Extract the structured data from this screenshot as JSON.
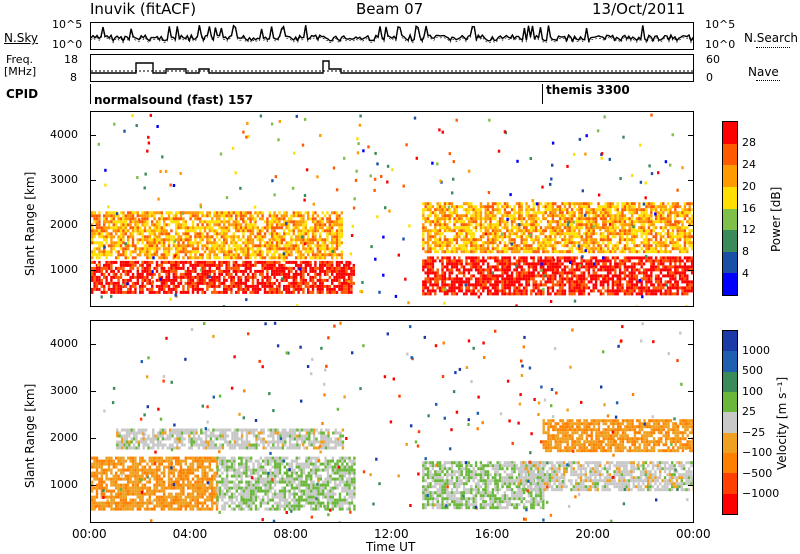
{
  "header": {
    "station": "Inuvik (fitACF)",
    "beam": "Beam 07",
    "date": "13/Oct/2011"
  },
  "left_labels": {
    "nsky": "N.Sky",
    "freq_top": "Freq.",
    "freq_unit": "[MHz]",
    "cpid": "CPID"
  },
  "right_labels": {
    "nsearch": "N.Search",
    "nave": "Nave"
  },
  "noise_axis": {
    "left_ticks": [
      "10^5",
      "10^0"
    ],
    "right_ticks": [
      "10^5",
      "10^0"
    ]
  },
  "freq_axis": {
    "left_ticks": [
      "18",
      "8"
    ],
    "right_ticks": [
      "60",
      "0"
    ]
  },
  "cpid_segments": [
    {
      "label": "normalsound (fast) 157"
    },
    {
      "label": "themis 3300"
    }
  ],
  "colors": {
    "power_scale": [
      "#0000ff",
      "#1a4fa8",
      "#3a8a5a",
      "#7fc04a",
      "#ffe000",
      "#ff9a00",
      "#ff5a00",
      "#ff0000"
    ],
    "velocity_scale": [
      "#1a3aa8",
      "#1e5fb0",
      "#3a8a5a",
      "#6ab83a",
      "#c8c8c8",
      "#f0a020",
      "#ff8000",
      "#ff4000",
      "#ff0000"
    ]
  },
  "chart_data": [
    {
      "type": "heatmap",
      "title": "",
      "xlabel": "",
      "ylabel": "Slant Range [km]",
      "ylim": [
        200,
        4500
      ],
      "yticks": [
        "1000",
        "2000",
        "3000",
        "4000"
      ],
      "colorbar": {
        "label": "Power [dB]",
        "ticks": [
          "4",
          "8",
          "12",
          "16",
          "20",
          "24",
          "28"
        ],
        "range": [
          0,
          30
        ]
      },
      "bands": [
        {
          "x0": 0.0,
          "x1": 10.5,
          "y0": 500,
          "y1": 1200,
          "level": 28
        },
        {
          "x0": 0.0,
          "x1": 10.0,
          "y0": 1300,
          "y1": 2300,
          "level": 20
        },
        {
          "x0": 13.2,
          "x1": 24.0,
          "y0": 500,
          "y1": 1300,
          "level": 28
        },
        {
          "x0": 13.2,
          "x1": 24.0,
          "y0": 1400,
          "y1": 2500,
          "level": 20
        }
      ]
    },
    {
      "type": "heatmap",
      "title": "",
      "xlabel": "Time UT",
      "ylabel": "Slant Range [km]",
      "ylim": [
        200,
        4500
      ],
      "yticks": [
        "1000",
        "2000",
        "3000",
        "4000"
      ],
      "xticks": [
        "00:00",
        "04:00",
        "08:00",
        "12:00",
        "16:00",
        "20:00",
        "00:00"
      ],
      "colorbar": {
        "label": "Velocity [m s⁻¹]",
        "ticks": [
          "1000",
          "500",
          "100",
          "25",
          "−25",
          "−100",
          "−500",
          "−1000"
        ],
        "range": [
          -1000,
          1000
        ]
      },
      "bands": [
        {
          "x0": 0.0,
          "x1": 5.0,
          "y0": 500,
          "y1": 1600,
          "level": -300
        },
        {
          "x0": 5.0,
          "x1": 10.5,
          "y0": 500,
          "y1": 1600,
          "level": 100
        },
        {
          "x0": 1.0,
          "x1": 10.0,
          "y0": 1800,
          "y1": 2200,
          "level": 0
        },
        {
          "x0": 13.2,
          "x1": 18.0,
          "y0": 500,
          "y1": 1500,
          "level": 100
        },
        {
          "x0": 17.0,
          "x1": 24.0,
          "y0": 900,
          "y1": 1500,
          "level": 0
        },
        {
          "x0": 18.0,
          "x1": 24.0,
          "y0": 1700,
          "y1": 2400,
          "level": -300
        }
      ]
    }
  ]
}
